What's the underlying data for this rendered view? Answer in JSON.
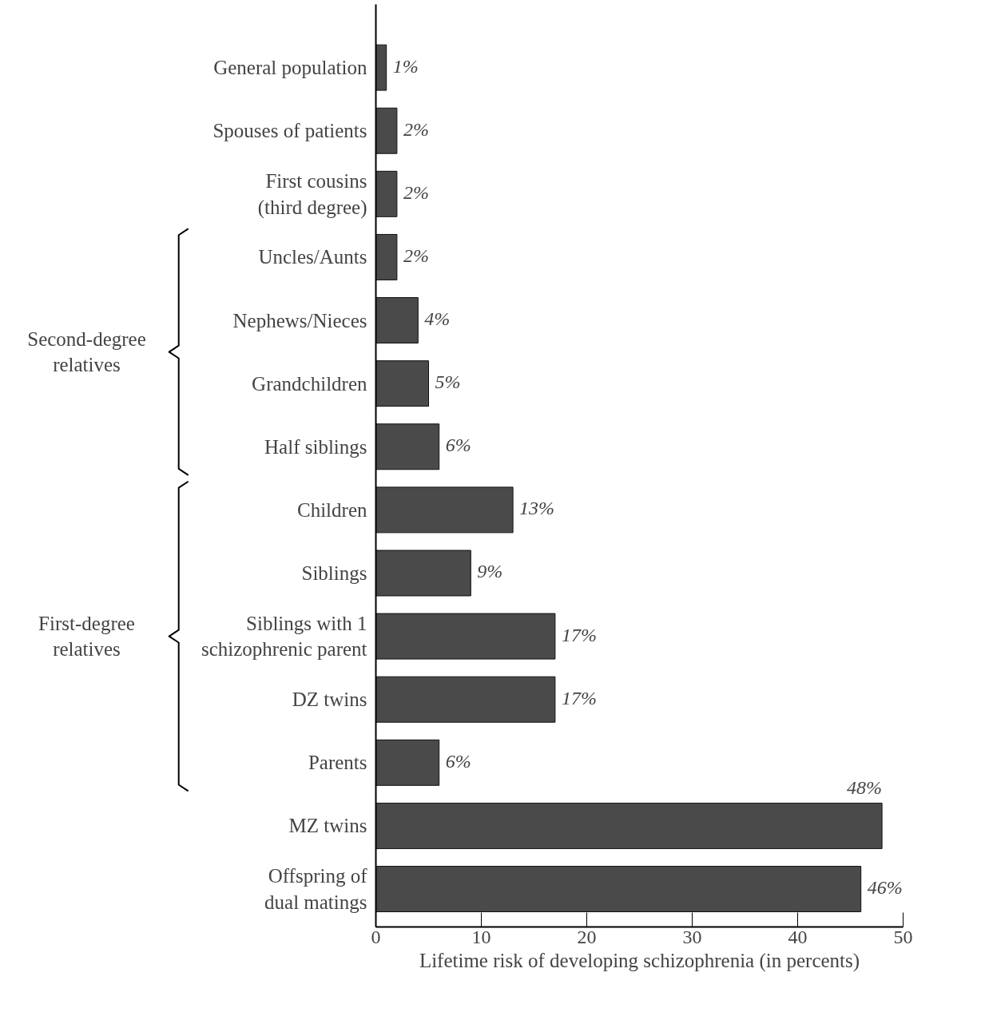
{
  "chart_data": {
    "type": "bar",
    "orientation": "horizontal",
    "xlabel": "Lifetime risk of developing schizophrenia (in percents)",
    "categories": [
      "General population",
      "Spouses of patients",
      "First cousins\n(third degree)",
      "Uncles/Aunts",
      "Nephews/Nieces",
      "Grandchildren",
      "Half siblings",
      "Children",
      "Siblings",
      "Siblings with 1\nschizophrenic parent",
      "DZ twins",
      "Parents",
      "MZ twins",
      "Offspring of\ndual matings"
    ],
    "values": [
      1,
      2,
      2,
      2,
      4,
      5,
      6,
      13,
      9,
      17,
      17,
      6,
      48,
      46
    ],
    "value_labels": [
      "1%",
      "2%",
      "2%",
      "2%",
      "4%",
      "5%",
      "6%",
      "13%",
      "9%",
      "17%",
      "17%",
      "6%",
      "48%",
      "46%"
    ],
    "color": "#4a4a4a",
    "xlim": [
      0,
      50
    ],
    "xticks": [
      0,
      10,
      20,
      30,
      40,
      50
    ],
    "grid": false,
    "annotations": [
      "Second-degree\nrelatives",
      "First-degree\nrelatives"
    ]
  }
}
